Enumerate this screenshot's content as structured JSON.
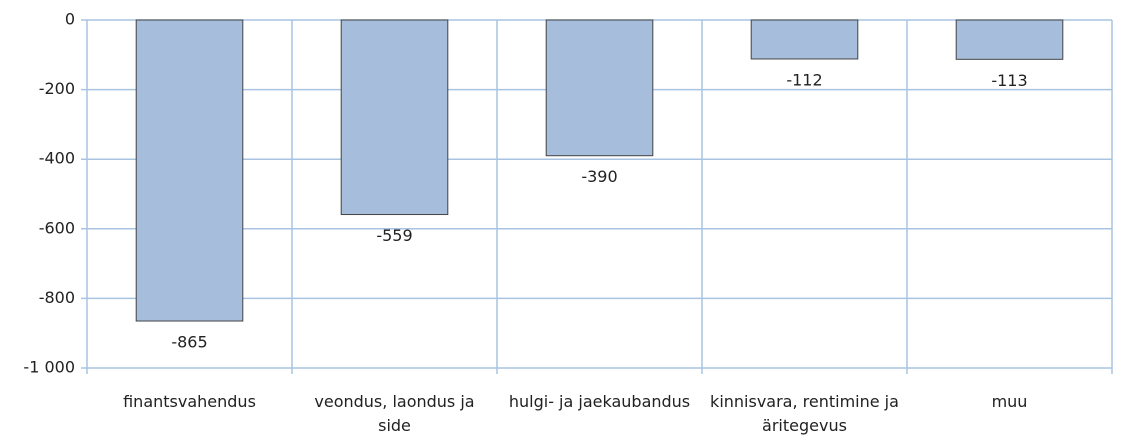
{
  "chart_data": {
    "type": "bar",
    "categories": [
      "finantsvahendus",
      "veondus, laondus ja side",
      "hulgi- ja jaekaubandus",
      "kinnisvara, rentimine ja äritegevus",
      "muu"
    ],
    "values": [
      -865,
      -559,
      -390,
      -112,
      -113
    ],
    "color": "#a6bedc",
    "ylim": [
      -1000,
      0
    ],
    "yticks": [
      0,
      -200,
      -400,
      -600,
      -800,
      {
        "value": -1000,
        "label": "-1 000"
      }
    ],
    "grid": true
  }
}
